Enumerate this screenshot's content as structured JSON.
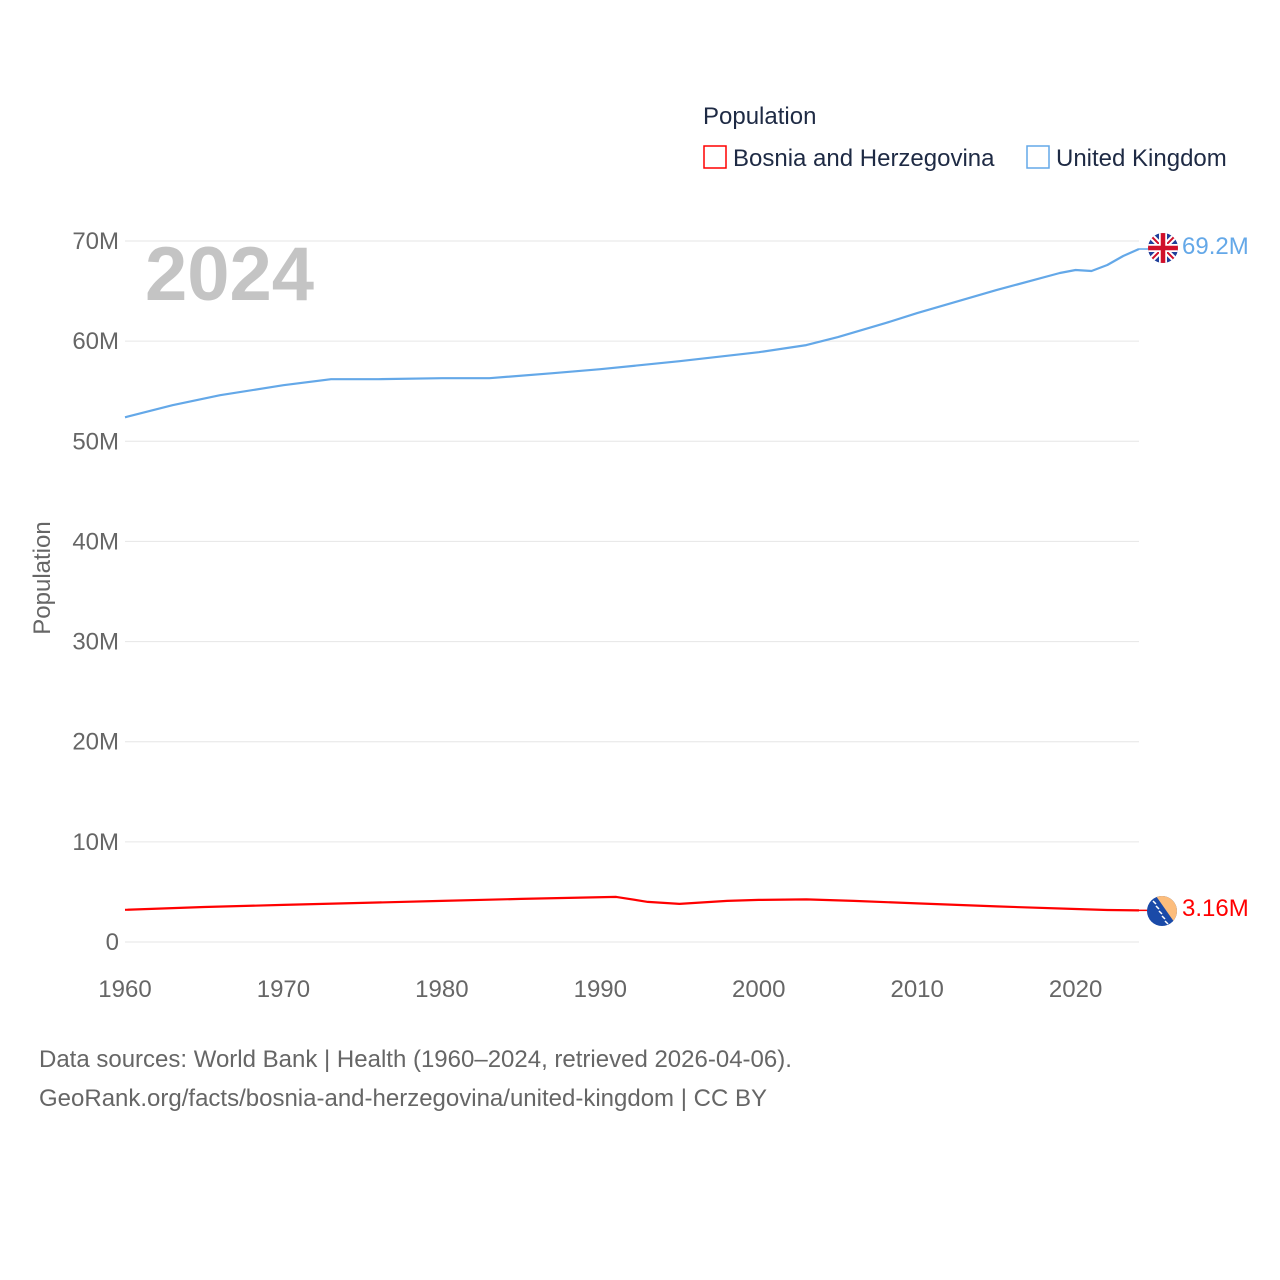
{
  "chart_data": {
    "type": "line",
    "title": "",
    "year_label": "2024",
    "legend_title": "Population",
    "legend_placement": "top-right",
    "xlabel": "",
    "ylabel": "Population",
    "xlim": [
      1960,
      2024
    ],
    "ylim": [
      0,
      70000000
    ],
    "x_ticks": [
      "1960",
      "1970",
      "1980",
      "1990",
      "2000",
      "2010",
      "2020"
    ],
    "y_ticks": [
      "0",
      "10M",
      "20M",
      "30M",
      "40M",
      "50M",
      "60M",
      "70M"
    ],
    "grid": true,
    "series": [
      {
        "name": "Bosnia and Herzegovina",
        "color": "#ff0000",
        "flag": "bosnia-flag",
        "end_label": "3.16M",
        "points": [
          [
            1960,
            3.22
          ],
          [
            1965,
            3.5
          ],
          [
            1970,
            3.7
          ],
          [
            1975,
            3.9
          ],
          [
            1980,
            4.1
          ],
          [
            1985,
            4.3
          ],
          [
            1991,
            4.5
          ],
          [
            1993,
            4.0
          ],
          [
            1995,
            3.8
          ],
          [
            1998,
            4.1
          ],
          [
            2000,
            4.2
          ],
          [
            2003,
            4.25
          ],
          [
            2006,
            4.1
          ],
          [
            2010,
            3.85
          ],
          [
            2015,
            3.55
          ],
          [
            2020,
            3.3
          ],
          [
            2022,
            3.2
          ],
          [
            2024,
            3.16
          ]
        ]
      },
      {
        "name": "United Kingdom",
        "color": "#64a8e8",
        "flag": "uk-flag",
        "end_label": "69.2M",
        "points": [
          [
            1960,
            52.4
          ],
          [
            1963,
            53.6
          ],
          [
            1966,
            54.6
          ],
          [
            1970,
            55.6
          ],
          [
            1973,
            56.2
          ],
          [
            1976,
            56.2
          ],
          [
            1980,
            56.3
          ],
          [
            1983,
            56.3
          ],
          [
            1987,
            56.8
          ],
          [
            1990,
            57.2
          ],
          [
            1995,
            58.0
          ],
          [
            2000,
            58.9
          ],
          [
            2003,
            59.6
          ],
          [
            2005,
            60.4
          ],
          [
            2008,
            61.8
          ],
          [
            2010,
            62.8
          ],
          [
            2015,
            65.1
          ],
          [
            2019,
            66.8
          ],
          [
            2020,
            67.1
          ],
          [
            2021,
            67.0
          ],
          [
            2022,
            67.6
          ],
          [
            2023,
            68.5
          ],
          [
            2024,
            69.2
          ]
        ]
      }
    ]
  },
  "footer": {
    "line1": "Data sources: World Bank | Health (1960–2024, retrieved 2026-04-06).",
    "line2": "GeoRank.org/facts/bosnia-and-herzegovina/united-kingdom | CC BY"
  }
}
